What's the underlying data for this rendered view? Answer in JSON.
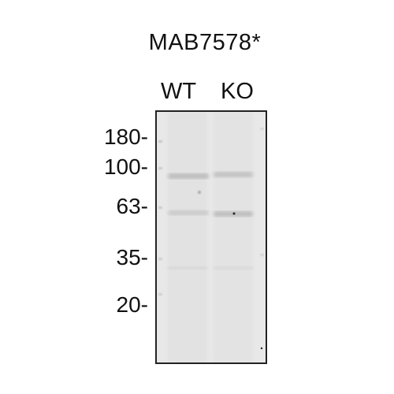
{
  "title": "MAB7578*",
  "lanes": [
    "WT",
    "KO"
  ],
  "markers": [
    {
      "label": "180-",
      "kda": 180
    },
    {
      "label": "100-",
      "kda": 100
    },
    {
      "label": "63-",
      "kda": 63
    },
    {
      "label": "35-",
      "kda": 35
    },
    {
      "label": "20-",
      "kda": 20
    }
  ],
  "colors": {
    "membrane": "#e9e9e9",
    "band": "#b8b8b8",
    "border": "#222222"
  }
}
